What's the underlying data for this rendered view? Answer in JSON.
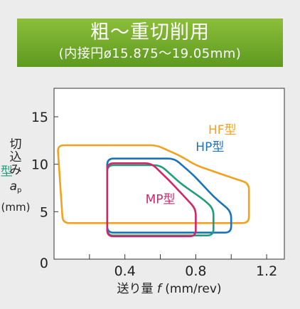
{
  "header": {
    "title": "粗〜重切削用",
    "subtitle": "(内接円ø15.875〜19.05mm)"
  },
  "chart_data": {
    "type": "area",
    "xlabel": "送り量",
    "xlabel_var": "f",
    "xlabel_unit": "(mm/rev)",
    "ylabel_lines": [
      "切",
      "込",
      "み",
      "a",
      "(mm)"
    ],
    "ylabel_sub": "p",
    "xlim": [
      0,
      1.3
    ],
    "ylim": [
      0,
      18
    ],
    "xticks": [
      0.4,
      0.8,
      1.2
    ],
    "xminor": [
      0.2,
      0.6,
      1.0
    ],
    "yticks": [
      0,
      5,
      10,
      15
    ],
    "origin_label": "0",
    "grid": false,
    "series": [
      {
        "name": "HF型",
        "color": "#f2a21e",
        "points": [
          [
            0.02,
            12
          ],
          [
            0.58,
            12
          ],
          [
            0.72,
            10.8
          ],
          [
            0.8,
            9.9
          ],
          [
            1.0,
            8.6
          ],
          [
            1.1,
            8.0
          ],
          [
            1.1,
            3.8
          ],
          [
            0.05,
            3.8
          ]
        ],
        "label_at": [
          0.95,
          13.2
        ]
      },
      {
        "name": "HP型",
        "color": "#1a73c0",
        "points": [
          [
            0.3,
            10.6
          ],
          [
            0.68,
            10.6
          ],
          [
            0.79,
            8.8
          ],
          [
            0.9,
            6.6
          ],
          [
            1.0,
            5.0
          ],
          [
            1.0,
            2.8
          ],
          [
            0.3,
            2.8
          ]
        ],
        "label_at": [
          0.88,
          11.4
        ]
      },
      {
        "name": "HG型",
        "color": "#1f9e7c",
        "points": [
          [
            0.3,
            9.9
          ],
          [
            0.6,
            9.9
          ],
          [
            0.72,
            7.9
          ],
          [
            0.85,
            6.2
          ],
          [
            0.9,
            5.3
          ],
          [
            0.9,
            2.5
          ],
          [
            0.3,
            2.5
          ]
        ],
        "label_at": [
          -0.32,
          8.8
        ]
      },
      {
        "name": "MP型",
        "color": "#d4256a",
        "points": [
          [
            0.3,
            10.1
          ],
          [
            0.55,
            10.1
          ],
          [
            0.66,
            8.1
          ],
          [
            0.75,
            6.3
          ],
          [
            0.8,
            5.3
          ],
          [
            0.8,
            2.4
          ],
          [
            0.3,
            2.4
          ]
        ],
        "label_at": [
          0.6,
          5.9
        ]
      }
    ]
  }
}
